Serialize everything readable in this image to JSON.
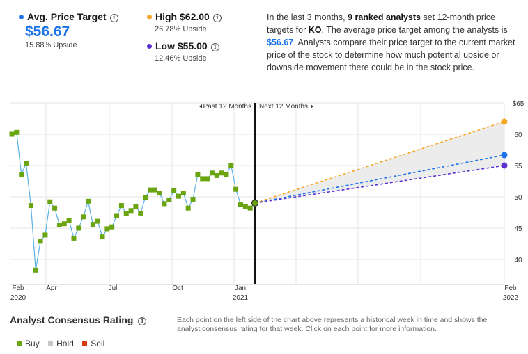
{
  "header": {
    "avg": {
      "label": "Avg. Price Target",
      "value": "$56.67",
      "upside": "15.88% Upside",
      "color": "#1a73e8"
    },
    "high": {
      "label": "High $62.00",
      "upside": "26.78% Upside",
      "color": "#f5a623"
    },
    "low": {
      "label": "Low $55.00",
      "upside": "12.46% Upside",
      "color": "#5b2fd1"
    },
    "info_glyph": "i"
  },
  "description": {
    "p1": "In the last 3 months, ",
    "analysts": "9 ranked analysts",
    "p2": " set 12-month price targets for ",
    "ticker": "KO",
    "p3": ". The average price target among the analysts is ",
    "avg": "$56.67",
    "p4": ". Analysts compare their price target to the current market price of the stock to determine how much potential upside or downside movement there could be in the stock price."
  },
  "chart_data": {
    "type": "line",
    "past_label": "Past 12 Months",
    "next_label": "Next 12 Months",
    "y_ticks": [
      "$65",
      "60",
      "55",
      "50",
      "45",
      "40"
    ],
    "ylim": [
      36,
      65
    ],
    "x_ticks": [
      {
        "label": "Feb",
        "sub": "2020"
      },
      {
        "label": "Apr",
        "sub": ""
      },
      {
        "label": "Jul",
        "sub": ""
      },
      {
        "label": "Oct",
        "sub": ""
      },
      {
        "label": "Jan",
        "sub": "2021"
      },
      {
        "label": "Feb",
        "sub": "2022"
      }
    ],
    "series": [
      {
        "values": [
          60.0,
          60.3,
          53.6,
          55.3,
          48.6,
          38.3,
          42.9,
          43.9,
          49.2,
          48.2,
          45.5,
          45.7,
          46.2,
          43.4,
          45.0,
          46.8,
          49.3,
          45.6,
          46.1,
          43.6,
          44.9,
          45.2,
          47.0,
          48.6,
          47.3,
          47.8,
          48.5,
          47.4,
          49.9,
          51.1,
          51.1,
          50.6,
          48.9,
          49.5,
          51.0,
          50.1,
          50.6,
          48.2,
          49.6,
          53.6,
          52.9,
          52.9,
          53.8,
          53.4,
          53.8,
          53.6,
          55.0,
          51.2,
          48.8,
          48.5,
          48.2,
          49.0
        ]
      }
    ],
    "projection": {
      "start": 49.0,
      "high": 62.0,
      "avg": 56.67,
      "low": 55.0
    }
  },
  "consensus": {
    "title": "Analyst Consensus Rating",
    "legend": [
      {
        "label": "Buy",
        "color": "#6aa50f"
      },
      {
        "label": "Hold",
        "color": "#c8c8c8"
      },
      {
        "label": "Sell",
        "color": "#d9390b"
      }
    ],
    "note": "Each point on the left side of the chart above represents a historical week in time and shows the analyst consensus rating for that week. Click on each point for more information."
  }
}
